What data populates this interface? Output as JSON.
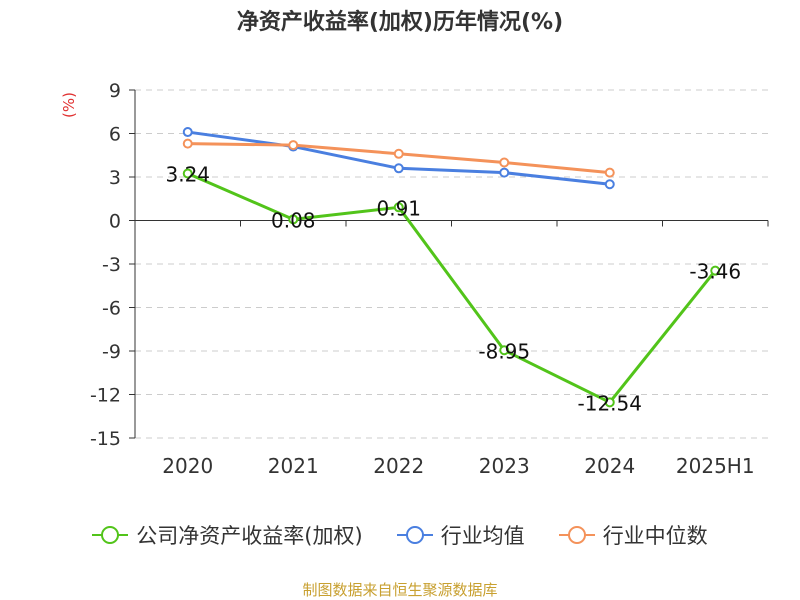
{
  "chart_data": {
    "type": "line",
    "title": "净资产收益率(加权)历年情况(%)",
    "ylabel": "(%)",
    "categories": [
      "2020",
      "2021",
      "2022",
      "2023",
      "2024",
      "2025H1"
    ],
    "ylim": [
      -15,
      9
    ],
    "yticks": [
      9,
      6,
      3,
      0,
      -3,
      -6,
      -9,
      -12,
      -15
    ],
    "grid": true,
    "legend_position": "bottom",
    "series": [
      {
        "name": "公司净资产收益率(加权)",
        "color": "#52c41a",
        "values": [
          3.24,
          0.08,
          0.91,
          -8.95,
          -12.54,
          -3.46
        ],
        "labels": [
          "3.24",
          "0.08",
          "0.91",
          "-8.95",
          "-12.54",
          "-3.46"
        ]
      },
      {
        "name": "行业均值",
        "color": "#4a7fe0",
        "values": [
          6.1,
          5.1,
          3.6,
          3.3,
          2.5,
          null
        ]
      },
      {
        "name": "行业中位数",
        "color": "#f4925a",
        "values": [
          5.3,
          5.2,
          4.6,
          4.0,
          3.3,
          null
        ]
      }
    ]
  },
  "source": "制图数据来自恒生聚源数据库"
}
